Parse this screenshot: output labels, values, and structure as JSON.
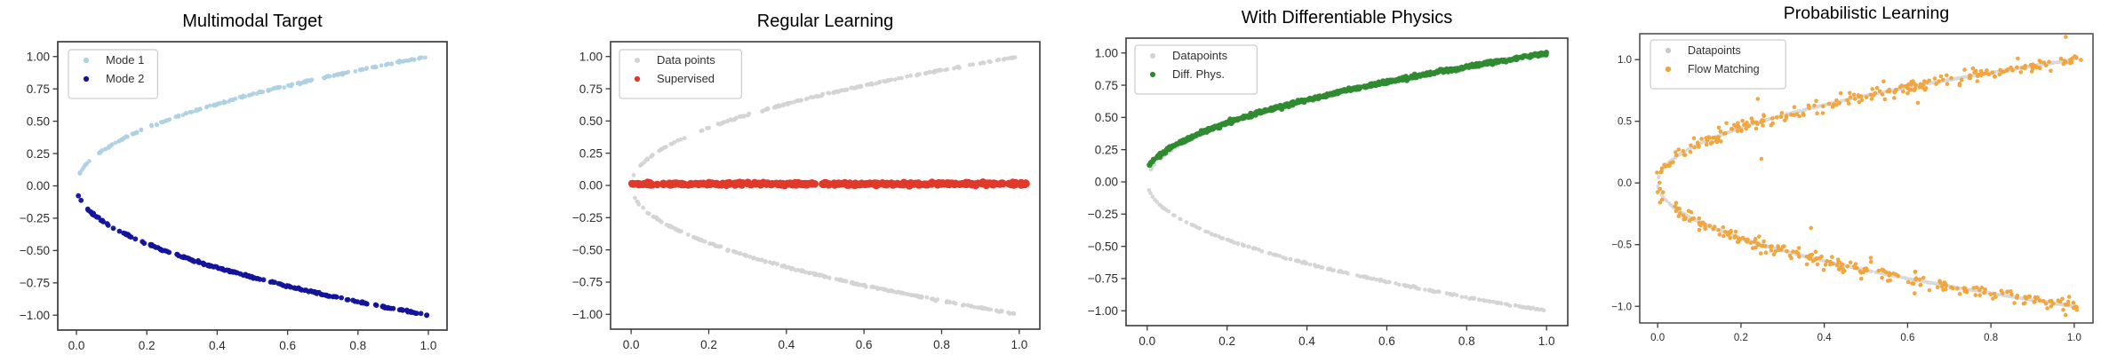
{
  "figure": {
    "background": "#ffffff",
    "spine_color": "#3a3a3a",
    "tick_color": "#3a3a3a",
    "n_panels": 4
  },
  "chart_data": [
    {
      "id": "multimodal-target",
      "type": "scatter",
      "title": "Multimodal Target",
      "xlabel": "",
      "ylabel": "",
      "xlim": [
        -0.053,
        1.053
      ],
      "ylim": [
        -1.115,
        1.115
      ],
      "xticks": [
        0.0,
        0.2,
        0.4,
        0.6,
        0.8,
        1.0
      ],
      "xtick_labels": [
        "0.0",
        "0.2",
        "0.4",
        "0.6",
        "0.8",
        "1.0"
      ],
      "yticks": [
        1.0,
        0.75,
        0.5,
        0.25,
        0.0,
        -0.25,
        -0.5,
        -0.75,
        -1.0
      ],
      "ytick_labels": [
        "1.00",
        "0.75",
        "0.50",
        "0.25",
        "0.00",
        "−0.25",
        "−0.50",
        "−0.75",
        "−1.00"
      ],
      "grid": false,
      "legend": {
        "position": "upper-left",
        "items": [
          {
            "label": "Mode 1",
            "color": "#aed0e2"
          },
          {
            "label": "Mode 2",
            "color": "#14149b"
          }
        ]
      },
      "series": [
        {
          "name": "Mode 1",
          "color": "#aed0e2",
          "opacity": 0.9,
          "marker_radius": 2.4,
          "relationship": "y = sqrt(x), upper mode of multimodal target",
          "generator": {
            "kind": "sqrt-branch",
            "sign": 1,
            "a": 1,
            "b": 0,
            "n": 215,
            "x_min": 0.004,
            "x_max": 0.998,
            "noise_y": 0.004,
            "noise_x": 0,
            "seed": 11
          }
        },
        {
          "name": "Mode 2",
          "color": "#14149b",
          "opacity": 0.97,
          "marker_radius": 2.9,
          "relationship": "y = -sqrt(x), lower mode of multimodal target",
          "generator": {
            "kind": "sqrt-branch",
            "sign": -1,
            "a": 1,
            "b": 0,
            "n": 215,
            "x_min": 0.004,
            "x_max": 0.998,
            "noise_y": 0.004,
            "noise_x": 0,
            "seed": 12
          }
        }
      ]
    },
    {
      "id": "regular-learning",
      "type": "scatter",
      "title": "Regular Learning",
      "xlabel": "",
      "ylabel": "",
      "xlim": [
        -0.053,
        1.053
      ],
      "ylim": [
        -1.115,
        1.115
      ],
      "xticks": [
        0.0,
        0.2,
        0.4,
        0.6,
        0.8,
        1.0
      ],
      "xtick_labels": [
        "0.0",
        "0.2",
        "0.4",
        "0.6",
        "0.8",
        "1.0"
      ],
      "yticks": [
        1.0,
        0.75,
        0.5,
        0.25,
        0.0,
        -0.25,
        -0.5,
        -0.75,
        -1.0
      ],
      "ytick_labels": [
        "1.00",
        "0.75",
        "0.50",
        "0.25",
        "0.00",
        "−0.25",
        "−0.50",
        "−0.75",
        "−1.00"
      ],
      "grid": false,
      "legend": {
        "position": "upper-left",
        "items": [
          {
            "label": "Data points",
            "color": "#d4d4d4"
          },
          {
            "label": "Supervised",
            "color": "#e0392a"
          }
        ]
      },
      "series": [
        {
          "name": "Data points",
          "color": "#d4d4d4",
          "opacity": 0.95,
          "marker_radius": 2.4,
          "relationship": "y = ±sqrt(x), both modes of the target data",
          "generator": {
            "kind": "sqrt-branch",
            "sign": "both",
            "a": 1,
            "b": 0,
            "n": 430,
            "x_min": 0.004,
            "x_max": 0.998,
            "noise_y": 0.003,
            "noise_x": 0,
            "seed": 21
          }
        },
        {
          "name": "Supervised",
          "color": "#e0392a",
          "opacity": 1,
          "marker_radius": 4.3,
          "relationship": "y ≈ 0 for all x; supervised regression averages the two modes",
          "generator": {
            "kind": "constant-y",
            "y": 0.012,
            "n": 330,
            "x_min": 0.0,
            "x_max": 1.02,
            "noise_y": 0.005,
            "noise_x": 0,
            "seed": 22
          }
        }
      ]
    },
    {
      "id": "with-differentiable-physics",
      "type": "scatter",
      "title": "With Differentiable Physics",
      "xlabel": "",
      "ylabel": "",
      "xlim": [
        -0.053,
        1.053
      ],
      "ylim": [
        -1.115,
        1.115
      ],
      "xticks": [
        0.0,
        0.2,
        0.4,
        0.6,
        0.8,
        1.0
      ],
      "xtick_labels": [
        "0.0",
        "0.2",
        "0.4",
        "0.6",
        "0.8",
        "1.0"
      ],
      "yticks": [
        1.0,
        0.75,
        0.5,
        0.25,
        0.0,
        -0.25,
        -0.5,
        -0.75,
        -1.0
      ],
      "ytick_labels": [
        "1.00",
        "0.75",
        "0.50",
        "0.25",
        "0.00",
        "−0.25",
        "−0.50",
        "−0.75",
        "−1.00"
      ],
      "grid": false,
      "legend": {
        "position": "upper-left",
        "items": [
          {
            "label": "Datapoints",
            "color": "#d4d4d4"
          },
          {
            "label": "Diff. Phys.",
            "color": "#2f8b2f"
          }
        ]
      },
      "series": [
        {
          "name": "Datapoints",
          "color": "#d4d4d4",
          "opacity": 0.95,
          "marker_radius": 2.3,
          "relationship": "y = ±sqrt(x), both modes of the target data",
          "generator": {
            "kind": "sqrt-branch",
            "sign": "both",
            "a": 1,
            "b": 0,
            "n": 430,
            "x_min": 0.004,
            "x_max": 0.998,
            "noise_y": 0.003,
            "noise_x": 0,
            "seed": 31
          }
        },
        {
          "name": "Diff. Phys.",
          "color": "#2f8b2f",
          "opacity": 0.97,
          "marker_radius": 3.1,
          "relationship": "y ≈ sqrt(x), solution converged to the upper mode (starts near y≈0.1 at x=0)",
          "generator": {
            "kind": "sqrt-branch",
            "sign": 1,
            "a": 0.98,
            "b": 0.013,
            "n": 560,
            "x_min": 0.0,
            "x_max": 1.0,
            "noise_y": 0.0065,
            "noise_x": 0,
            "seed": 32
          }
        }
      ]
    },
    {
      "id": "probabilistic-learning",
      "type": "scatter",
      "title": "Probabilistic Learning",
      "xlabel": "",
      "ylabel": "",
      "xlim": [
        -0.043,
        1.045
      ],
      "ylim": [
        -1.135,
        1.21
      ],
      "xticks": [
        0.0,
        0.2,
        0.4,
        0.6,
        0.8,
        1.0
      ],
      "xtick_labels": [
        "0.0",
        "0.2",
        "0.4",
        "0.6",
        "0.8",
        "1.0"
      ],
      "yticks": [
        1.0,
        0.5,
        0.0,
        -0.5,
        -1.0
      ],
      "ytick_labels": [
        "1.0",
        "0.5",
        "0.0",
        "−0.5",
        "−1.0"
      ],
      "grid": false,
      "legend": {
        "position": "upper-left",
        "items": [
          {
            "label": "Datapoints",
            "color": "#c9c9c9"
          },
          {
            "label": "Flow Matching",
            "color": "#f0a43a"
          }
        ]
      },
      "series": [
        {
          "name": "Datapoints",
          "color": "#d9d9d9",
          "opacity": 0.95,
          "marker_radius": 1.9,
          "relationship": "y = ±sqrt(x), dense target curve appearing as a continuous gray band",
          "generator": {
            "kind": "sqrt-branch",
            "sign": "both",
            "a": 1,
            "b": 0,
            "n": 1500,
            "x_min": 0.0005,
            "x_max": 1.0,
            "noise_y": 0.0015,
            "noise_x": 0,
            "seed": 41
          }
        },
        {
          "name": "Flow Matching",
          "color": "#f0a43a",
          "opacity": 0.96,
          "marker_radius": 2.3,
          "relationship": "noisy samples around y = ±sqrt(x) covering both modes, with a few outliers inside the parabola",
          "generator": {
            "kind": "sqrt-branch",
            "sign": "both",
            "a": 1,
            "b": 0,
            "n": 470,
            "x_min": 0.001,
            "x_max": 1.01,
            "noise_y": 0.027,
            "noise_x": 0.004,
            "seed": 42,
            "outliers": {
              "n": 13,
              "noise_y": 0.17,
              "x_min": 0.02,
              "x_max": 0.98,
              "seed": 43
            }
          }
        }
      ]
    }
  ]
}
